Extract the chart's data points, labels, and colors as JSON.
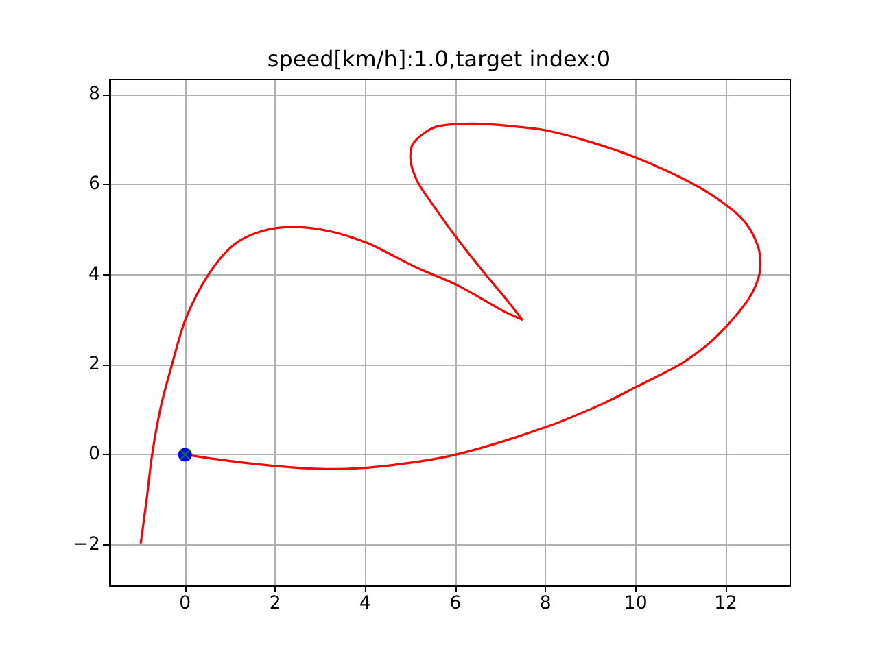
{
  "chart_data": {
    "type": "line",
    "title": "speed[km/h]:1.0,target index:0",
    "xlim": [
      -1.67,
      13.43
    ],
    "ylim": [
      -2.9,
      8.33
    ],
    "xticks": [
      0,
      2,
      4,
      6,
      8,
      10,
      12
    ],
    "yticks": [
      {
        "value": -2,
        "label": "−2"
      },
      0,
      2,
      4,
      6,
      8
    ],
    "grid": true,
    "series": [
      {
        "color": "#ff0000",
        "marker": "none",
        "line_style": "solid",
        "x": [
          0,
          1,
          2,
          3.2,
          4.44,
          6.0,
          8.0,
          9.31,
          10.02,
          10.99,
          11.6,
          12.04,
          12.46,
          12.68,
          12.77,
          12.72,
          12.46,
          12.04,
          11.24,
          10.02,
          9.01,
          8.01,
          7.18,
          6.4,
          5.66,
          5.35,
          5.05,
          5.0,
          5.15,
          5.45,
          6.03,
          6.67,
          7.18,
          7.48,
          7.08,
          6.03,
          5.15,
          4.44,
          4.03,
          3.22,
          2.4,
          1.69,
          1.08,
          0.52,
          0.02,
          -0.29,
          -0.54,
          -0.73,
          -0.85,
          -0.98
        ],
        "values": [
          0,
          -0.14,
          -0.25,
          -0.32,
          -0.25,
          0,
          0.61,
          1.15,
          1.51,
          2.01,
          2.45,
          2.88,
          3.39,
          3.8,
          4.2,
          4.61,
          5.12,
          5.52,
          6.03,
          6.59,
          6.94,
          7.2,
          7.3,
          7.35,
          7.3,
          7.17,
          6.89,
          6.6,
          6.08,
          5.62,
          4.81,
          4.0,
          3.39,
          3.0,
          3.18,
          3.77,
          4.15,
          4.51,
          4.71,
          4.96,
          5.06,
          4.96,
          4.66,
          4.0,
          3.03,
          2.0,
          1.05,
          0,
          -0.98,
          -1.95
        ]
      },
      {
        "type": "scatter",
        "color": "#0000ff",
        "marker": "circle",
        "x": [
          0
        ],
        "values": [
          0
        ]
      },
      {
        "type": "scatter",
        "color": "#008000",
        "marker": "cross",
        "x": [
          0
        ],
        "values": [
          0
        ]
      }
    ]
  }
}
